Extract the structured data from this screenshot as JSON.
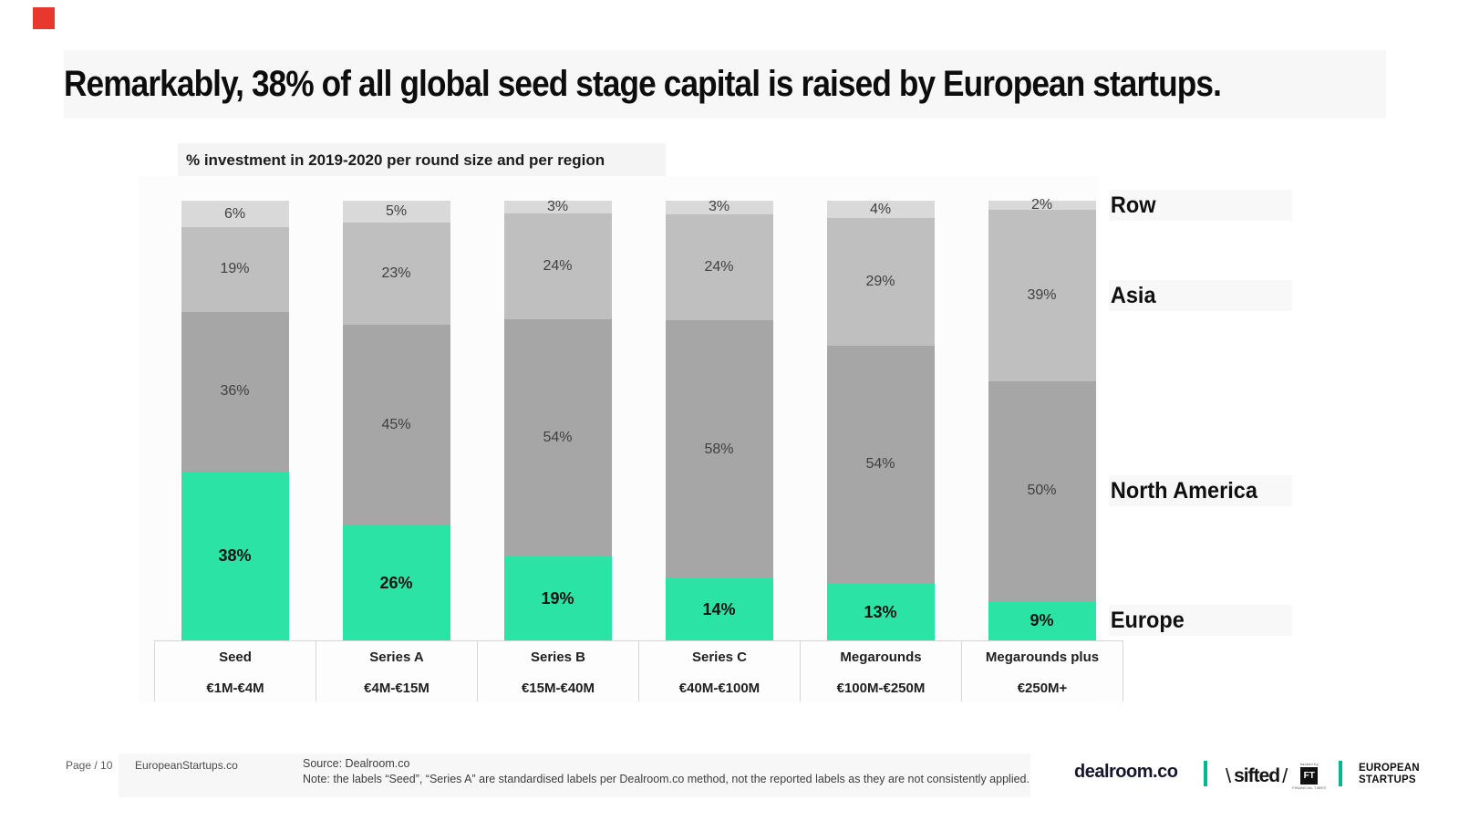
{
  "brand": {
    "red_square_color": "#e8382d"
  },
  "header": {
    "title": "Remarkably, 38% of all global seed stage capital is raised by European startups."
  },
  "chart_data": {
    "type": "bar",
    "stacked": true,
    "title": "% investment in 2019-2020 per round size and per region",
    "categories": [
      "Seed",
      "Series A",
      "Series B",
      "Series C",
      "Megarounds",
      "Megarounds plus"
    ],
    "category_ranges": [
      "€1M-€4M",
      "€4M-€15M",
      "€15M-€40M",
      "€40M-€100M",
      "€100M-€250M",
      "€250M+"
    ],
    "series_top_to_bottom": [
      {
        "name": "Row",
        "color": "#d9d9d9",
        "label_color": "#3f3f3f",
        "label_bold": false,
        "values": [
          6,
          5,
          3,
          3,
          4,
          2
        ]
      },
      {
        "name": "Asia",
        "color": "#bfbfbf",
        "label_color": "#3f3f3f",
        "label_bold": false,
        "values": [
          19,
          23,
          24,
          24,
          29,
          39
        ]
      },
      {
        "name": "North America",
        "color": "#a6a6a6",
        "label_color": "#3f3f3f",
        "label_bold": false,
        "values": [
          36,
          45,
          54,
          58,
          54,
          50
        ]
      },
      {
        "name": "Europe",
        "color": "#2ae3a5",
        "label_color": "#141414",
        "label_bold": true,
        "values": [
          38,
          26,
          19,
          14,
          13,
          9
        ]
      }
    ],
    "value_suffix": "%",
    "legend_position": "right",
    "grid": false,
    "ylim": [
      0,
      100
    ]
  },
  "footer": {
    "page_label": "Page / 10",
    "site": "EuropeanStartups.co",
    "source": "Source: Dealroom.co",
    "note": "Note: the labels “Seed”, “Series A” are standardised labels per Dealroom.co method, not the reported labels as they are not consistently applied."
  },
  "logos": {
    "dealroom": "dealroom.co",
    "sifted_pre": "\\",
    "sifted": "sifted",
    "sifted_post": "/",
    "ft_top": "backed by",
    "ft_badge": "FT",
    "ft_bottom": "FINANCIAL TIMES",
    "european_line1": "EUROPEAN",
    "european_line2": "STARTUPS",
    "separator_color": "#00b98e"
  }
}
